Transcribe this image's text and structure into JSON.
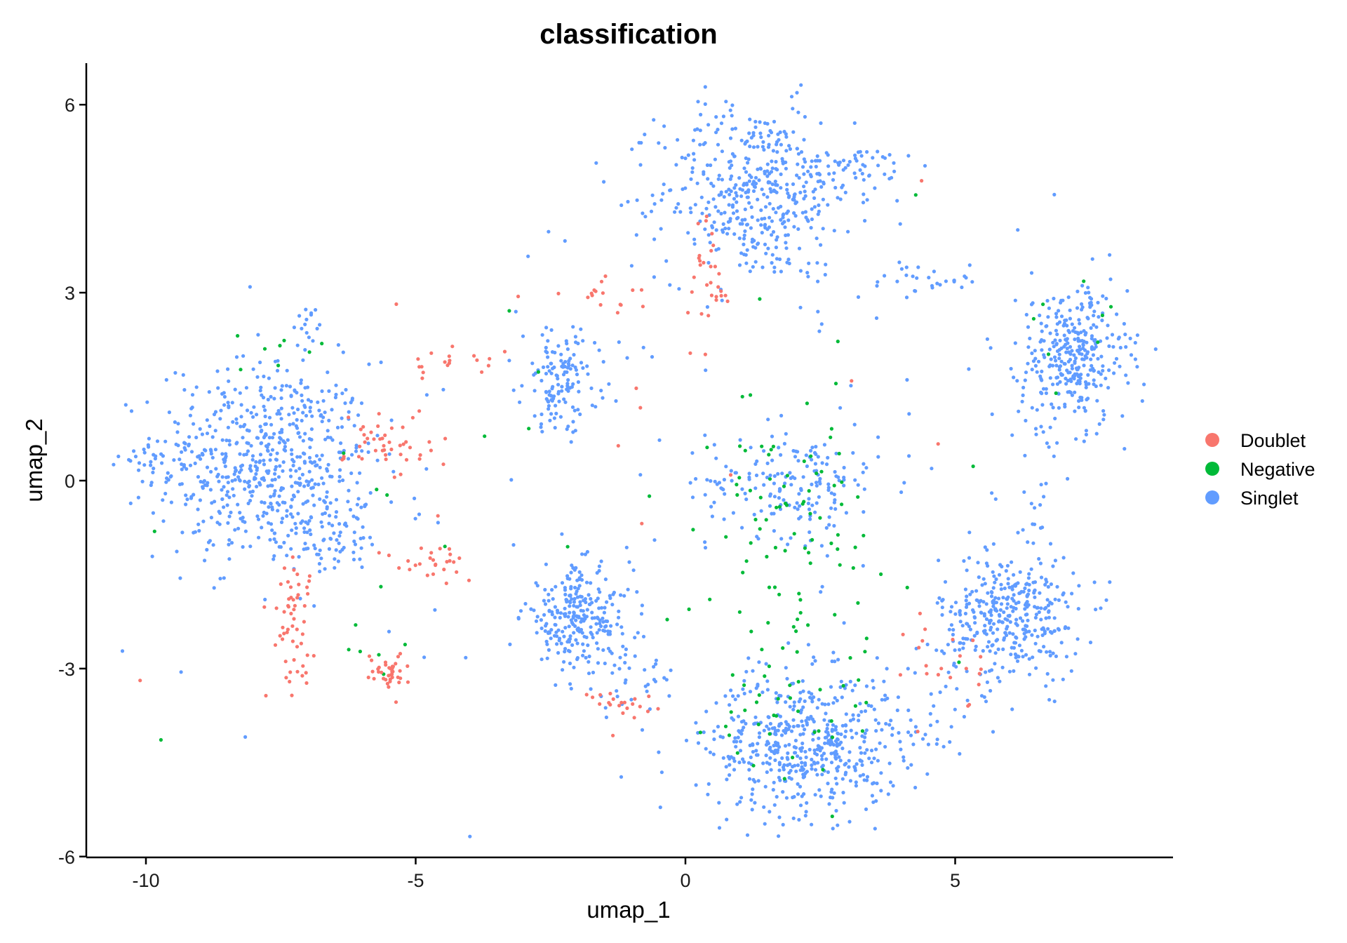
{
  "chart_data": {
    "type": "scatter",
    "title": "classification",
    "xlabel": "umap_1",
    "ylabel": "umap_2",
    "xlim": [
      -11.0,
      9.2
    ],
    "ylim": [
      -6.1,
      6.65
    ],
    "x_ticks": [
      -10,
      -5,
      0,
      5
    ],
    "x_tick_labels": [
      "-10",
      "-5",
      "0",
      "5"
    ],
    "y_ticks": [
      -6,
      -3,
      0,
      3,
      6
    ],
    "y_tick_labels": [
      "-6",
      "-3",
      "0",
      "3",
      "6"
    ],
    "grid": false,
    "legend_position": "right",
    "series": [
      {
        "name": "Doublet",
        "color": "#F8766D",
        "clusters": [
          {
            "cx": -7.3,
            "cy": -2.2,
            "sx": 0.2,
            "sy": 0.5,
            "n": 55
          },
          {
            "cx": -5.5,
            "cy": -3.05,
            "sx": 0.2,
            "sy": 0.15,
            "n": 38
          },
          {
            "cx": -5.5,
            "cy": 0.6,
            "sx": 0.4,
            "sy": 0.3,
            "n": 45
          },
          {
            "cx": -4.6,
            "cy": -1.3,
            "sx": 0.5,
            "sy": 0.15,
            "n": 26
          },
          {
            "cx": -4.3,
            "cy": 1.9,
            "sx": 0.45,
            "sy": 0.1,
            "n": 18
          },
          {
            "cx": -1.5,
            "cy": 2.95,
            "sx": 0.35,
            "sy": 0.15,
            "n": 16
          },
          {
            "cx": 0.45,
            "cy": 3.1,
            "sx": 0.2,
            "sy": 0.6,
            "n": 30
          },
          {
            "cx": -1.1,
            "cy": -3.55,
            "sx": 0.35,
            "sy": 0.15,
            "n": 20
          },
          {
            "cx": 4.8,
            "cy": -2.9,
            "sx": 0.35,
            "sy": 0.4,
            "n": 22
          },
          {
            "cx": 0.0,
            "cy": 0.5,
            "sx": 2.8,
            "sy": 2.5,
            "n": 14
          }
        ]
      },
      {
        "name": "Negative",
        "color": "#00BA38",
        "clusters": [
          {
            "cx": 2.0,
            "cy": -1.0,
            "sx": 0.7,
            "sy": 1.3,
            "n": 95
          },
          {
            "cx": 1.8,
            "cy": -3.6,
            "sx": 0.9,
            "sy": 0.5,
            "n": 28
          },
          {
            "cx": -7.6,
            "cy": 1.9,
            "sx": 0.8,
            "sy": 0.3,
            "n": 8
          },
          {
            "cx": 7.0,
            "cy": 2.2,
            "sx": 0.5,
            "sy": 0.7,
            "n": 8
          },
          {
            "cx": -5.6,
            "cy": -2.7,
            "sx": 0.5,
            "sy": 0.3,
            "n": 6
          },
          {
            "cx": -5.5,
            "cy": 0.2,
            "sx": 0.4,
            "sy": 0.6,
            "n": 5
          },
          {
            "cx": 0.0,
            "cy": 0.0,
            "sx": 4.0,
            "sy": 2.6,
            "n": 14
          }
        ]
      },
      {
        "name": "Singlet",
        "color": "#619CFF",
        "clusters": [
          {
            "cx": -7.8,
            "cy": 0.3,
            "sx": 1.0,
            "sy": 0.8,
            "n": 600
          },
          {
            "cx": -9.8,
            "cy": 0.4,
            "sx": 0.35,
            "sy": 0.15,
            "n": 22
          },
          {
            "cx": -7.0,
            "cy": 2.55,
            "sx": 0.1,
            "sy": 0.12,
            "n": 14
          },
          {
            "cx": 1.3,
            "cy": 4.6,
            "sx": 0.9,
            "sy": 0.7,
            "n": 450
          },
          {
            "cx": 3.2,
            "cy": 5.0,
            "sx": 0.5,
            "sy": 0.15,
            "n": 45
          },
          {
            "cx": 2.0,
            "cy": 0.0,
            "sx": 0.8,
            "sy": 0.45,
            "n": 170
          },
          {
            "cx": 2.2,
            "cy": -4.2,
            "sx": 0.9,
            "sy": 0.55,
            "n": 520
          },
          {
            "cx": 6.0,
            "cy": -2.2,
            "sx": 0.65,
            "sy": 0.5,
            "n": 360
          },
          {
            "cx": 7.2,
            "cy": 2.0,
            "sx": 0.5,
            "sy": 0.55,
            "n": 330
          },
          {
            "cx": -2.3,
            "cy": 1.6,
            "sx": 0.35,
            "sy": 0.4,
            "n": 130
          },
          {
            "cx": -2.0,
            "cy": -2.2,
            "sx": 0.5,
            "sy": 0.4,
            "n": 260
          },
          {
            "cx": 4.4,
            "cy": 3.2,
            "sx": 0.6,
            "sy": 0.15,
            "n": 30
          },
          {
            "cx": -6.6,
            "cy": -0.9,
            "sx": 0.5,
            "sy": 0.3,
            "n": 70
          },
          {
            "cx": 0.0,
            "cy": 0.0,
            "sx": 4.5,
            "sy": 2.8,
            "n": 120
          },
          {
            "cx": 6.5,
            "cy": -0.4,
            "sx": 0.3,
            "sy": 0.8,
            "n": 30
          },
          {
            "cx": -1.0,
            "cy": -3.2,
            "sx": 0.5,
            "sy": 0.3,
            "n": 30
          },
          {
            "cx": 4.4,
            "cy": -3.8,
            "sx": 0.5,
            "sy": 0.4,
            "n": 30
          }
        ]
      }
    ]
  }
}
